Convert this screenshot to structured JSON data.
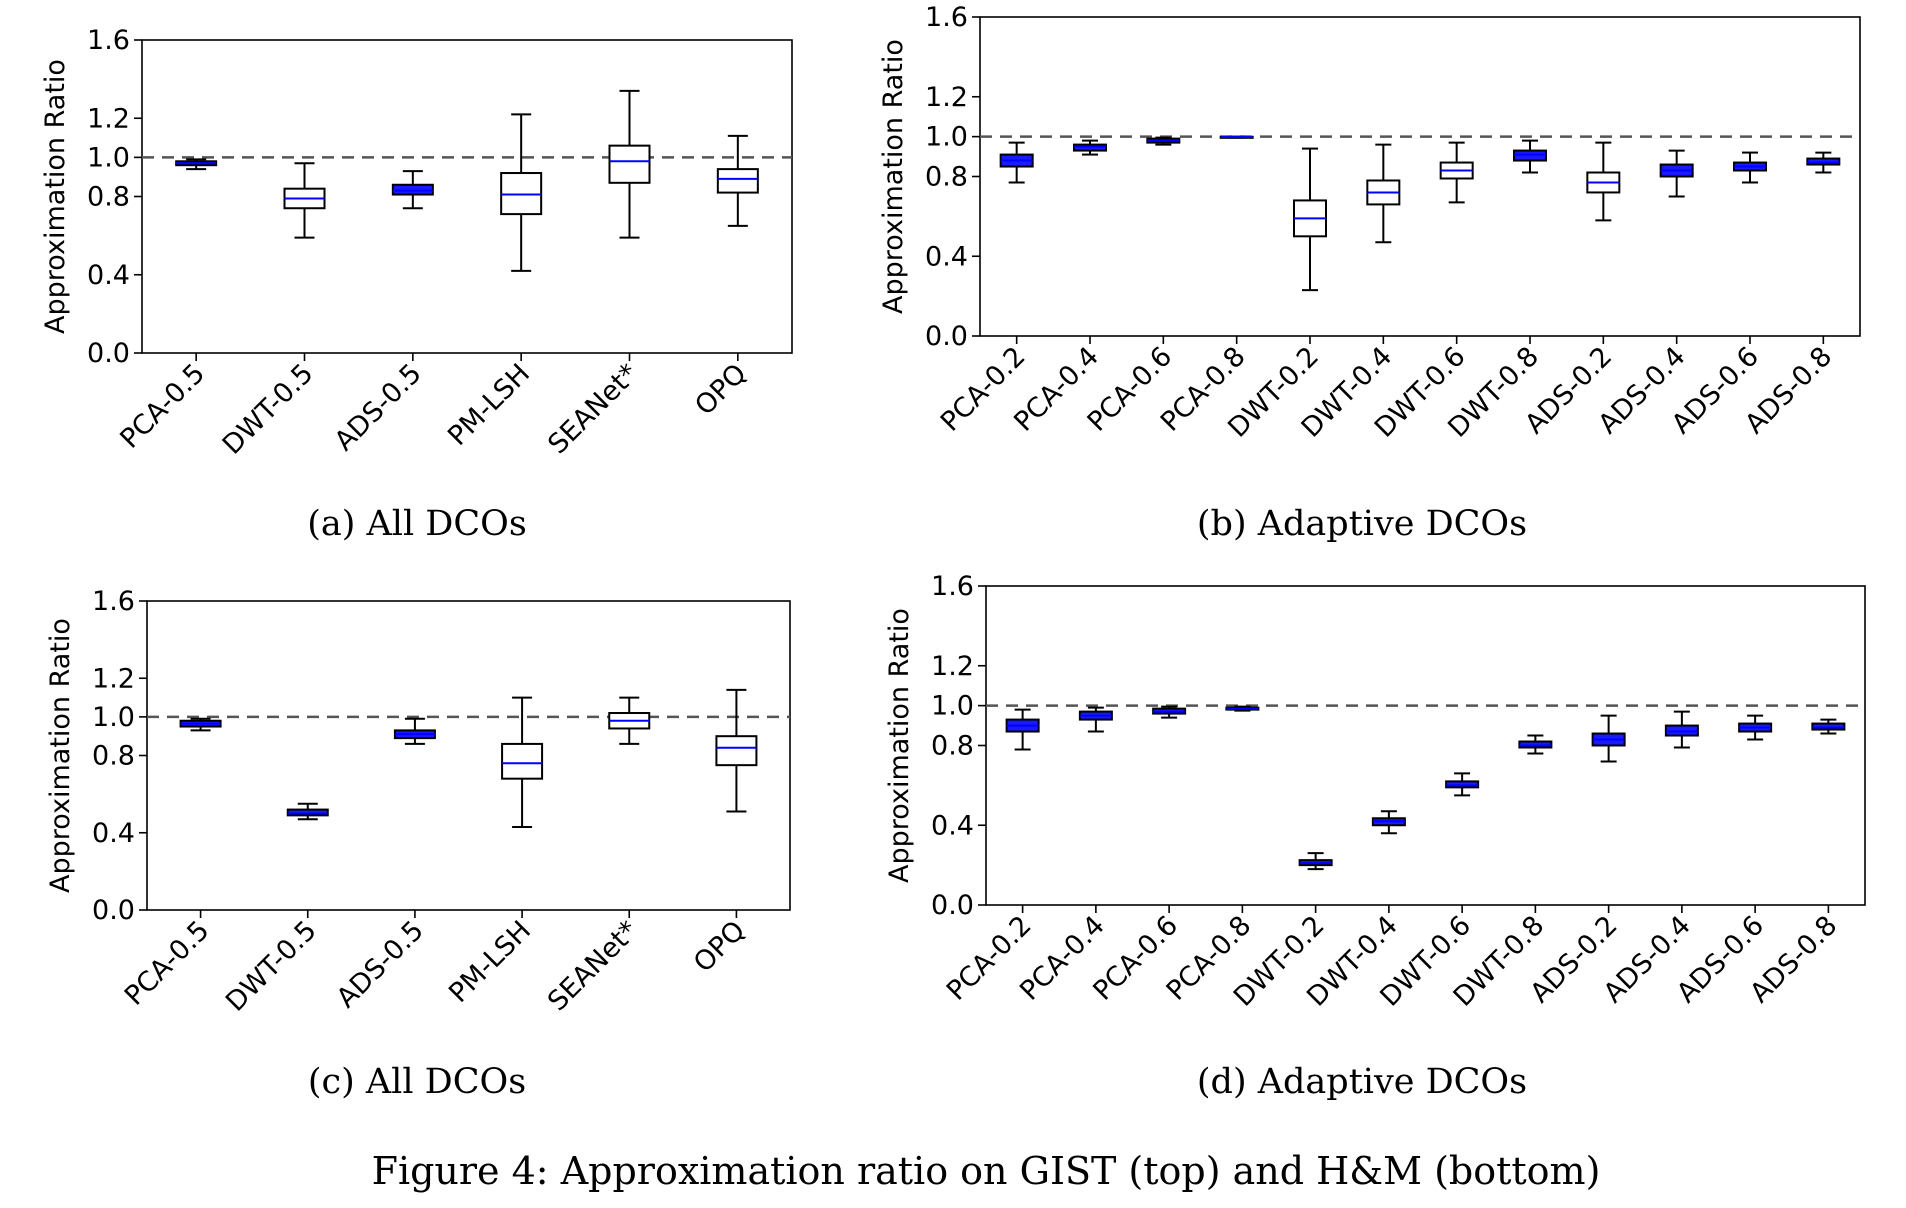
{
  "figure": {
    "caption": "Figure 4: Approximation ratio on GIST (top) and H&M (bottom)"
  },
  "chart_data": [
    {
      "id": "a",
      "type": "boxplot",
      "subcaption": "(a) All DCOs",
      "ylabel": "Approximation Ratio",
      "ylim": [
        0.0,
        1.6
      ],
      "yticks": [
        "0.0",
        "0.4",
        "0.8",
        "1.0",
        "1.2",
        "1.6"
      ],
      "reference_line": 1.0,
      "categories": [
        "PCA-0.5",
        "DWT-0.5",
        "ADS-0.5",
        "PM-LSH",
        "SEANet*",
        "OPQ"
      ],
      "boxes": [
        {
          "whislo": 0.94,
          "q1": 0.96,
          "med": 0.97,
          "q3": 0.98,
          "whishi": 0.99
        },
        {
          "whislo": 0.59,
          "q1": 0.74,
          "med": 0.79,
          "q3": 0.84,
          "whishi": 0.97
        },
        {
          "whislo": 0.74,
          "q1": 0.81,
          "med": 0.83,
          "q3": 0.86,
          "whishi": 0.93
        },
        {
          "whislo": 0.42,
          "q1": 0.71,
          "med": 0.81,
          "q3": 0.92,
          "whishi": 1.22
        },
        {
          "whislo": 0.59,
          "q1": 0.87,
          "med": 0.98,
          "q3": 1.06,
          "whishi": 1.34
        },
        {
          "whislo": 0.65,
          "q1": 0.82,
          "med": 0.89,
          "q3": 0.94,
          "whishi": 1.11
        }
      ]
    },
    {
      "id": "b",
      "type": "boxplot",
      "subcaption": "(b) Adaptive DCOs",
      "ylabel": "Approximation Ratio",
      "ylim": [
        0.0,
        1.6
      ],
      "yticks": [
        "0.0",
        "0.4",
        "0.8",
        "1.0",
        "1.2",
        "1.6"
      ],
      "reference_line": 1.0,
      "categories": [
        "PCA-0.2",
        "PCA-0.4",
        "PCA-0.6",
        "PCA-0.8",
        "DWT-0.2",
        "DWT-0.4",
        "DWT-0.6",
        "DWT-0.8",
        "ADS-0.2",
        "ADS-0.4",
        "ADS-0.6",
        "ADS-0.8"
      ],
      "boxes": [
        {
          "whislo": 0.77,
          "q1": 0.85,
          "med": 0.88,
          "q3": 0.91,
          "whishi": 0.97
        },
        {
          "whislo": 0.91,
          "q1": 0.93,
          "med": 0.95,
          "q3": 0.96,
          "whishi": 0.98
        },
        {
          "whislo": 0.96,
          "q1": 0.97,
          "med": 0.98,
          "q3": 0.99,
          "whishi": 0.995
        },
        {
          "whislo": 0.995,
          "q1": 0.997,
          "med": 0.998,
          "q3": 0.999,
          "whishi": 1.0
        },
        {
          "whislo": 0.23,
          "q1": 0.5,
          "med": 0.59,
          "q3": 0.68,
          "whishi": 0.94
        },
        {
          "whislo": 0.47,
          "q1": 0.66,
          "med": 0.72,
          "q3": 0.78,
          "whishi": 0.96
        },
        {
          "whislo": 0.67,
          "q1": 0.79,
          "med": 0.83,
          "q3": 0.87,
          "whishi": 0.97
        },
        {
          "whislo": 0.82,
          "q1": 0.88,
          "med": 0.91,
          "q3": 0.93,
          "whishi": 0.98
        },
        {
          "whislo": 0.58,
          "q1": 0.72,
          "med": 0.77,
          "q3": 0.82,
          "whishi": 0.97
        },
        {
          "whislo": 0.7,
          "q1": 0.8,
          "med": 0.83,
          "q3": 0.86,
          "whishi": 0.93
        },
        {
          "whislo": 0.77,
          "q1": 0.83,
          "med": 0.85,
          "q3": 0.87,
          "whishi": 0.92
        },
        {
          "whislo": 0.82,
          "q1": 0.86,
          "med": 0.87,
          "q3": 0.89,
          "whishi": 0.92
        }
      ]
    },
    {
      "id": "c",
      "type": "boxplot",
      "subcaption": "(c) All DCOs",
      "ylabel": "Approximation Ratio",
      "ylim": [
        0.0,
        1.6
      ],
      "yticks": [
        "0.0",
        "0.4",
        "0.8",
        "1.0",
        "1.2",
        "1.6"
      ],
      "reference_line": 1.0,
      "categories": [
        "PCA-0.5",
        "DWT-0.5",
        "ADS-0.5",
        "PM-LSH",
        "SEANet*",
        "OPQ"
      ],
      "boxes": [
        {
          "whislo": 0.93,
          "q1": 0.95,
          "med": 0.965,
          "q3": 0.98,
          "whishi": 0.99
        },
        {
          "whislo": 0.47,
          "q1": 0.49,
          "med": 0.5,
          "q3": 0.52,
          "whishi": 0.55
        },
        {
          "whislo": 0.86,
          "q1": 0.89,
          "med": 0.91,
          "q3": 0.93,
          "whishi": 0.99
        },
        {
          "whislo": 0.43,
          "q1": 0.68,
          "med": 0.76,
          "q3": 0.86,
          "whishi": 1.1
        },
        {
          "whislo": 0.86,
          "q1": 0.94,
          "med": 0.98,
          "q3": 1.02,
          "whishi": 1.1
        },
        {
          "whislo": 0.51,
          "q1": 0.75,
          "med": 0.84,
          "q3": 0.9,
          "whishi": 1.14
        }
      ]
    },
    {
      "id": "d",
      "type": "boxplot",
      "subcaption": "(d) Adaptive DCOs",
      "ylabel": "Approximation Ratio",
      "ylim": [
        0.0,
        1.6
      ],
      "yticks": [
        "0.0",
        "0.4",
        "0.8",
        "1.0",
        "1.2",
        "1.6"
      ],
      "reference_line": 1.0,
      "categories": [
        "PCA-0.2",
        "PCA-0.4",
        "PCA-0.6",
        "PCA-0.8",
        "DWT-0.2",
        "DWT-0.4",
        "DWT-0.6",
        "DWT-0.8",
        "ADS-0.2",
        "ADS-0.4",
        "ADS-0.6",
        "ADS-0.8"
      ],
      "boxes": [
        {
          "whislo": 0.78,
          "q1": 0.87,
          "med": 0.9,
          "q3": 0.93,
          "whishi": 0.98
        },
        {
          "whislo": 0.87,
          "q1": 0.93,
          "med": 0.95,
          "q3": 0.97,
          "whishi": 0.99
        },
        {
          "whislo": 0.94,
          "q1": 0.96,
          "med": 0.97,
          "q3": 0.985,
          "whishi": 0.995
        },
        {
          "whislo": 0.975,
          "q1": 0.98,
          "med": 0.985,
          "q3": 0.99,
          "whishi": 0.995
        },
        {
          "whislo": 0.18,
          "q1": 0.2,
          "med": 0.21,
          "q3": 0.225,
          "whishi": 0.26
        },
        {
          "whislo": 0.36,
          "q1": 0.4,
          "med": 0.42,
          "q3": 0.435,
          "whishi": 0.47
        },
        {
          "whislo": 0.55,
          "q1": 0.59,
          "med": 0.6,
          "q3": 0.62,
          "whishi": 0.66
        },
        {
          "whislo": 0.76,
          "q1": 0.79,
          "med": 0.8,
          "q3": 0.82,
          "whishi": 0.85
        },
        {
          "whislo": 0.72,
          "q1": 0.8,
          "med": 0.83,
          "q3": 0.86,
          "whishi": 0.95
        },
        {
          "whislo": 0.79,
          "q1": 0.85,
          "med": 0.87,
          "q3": 0.9,
          "whishi": 0.97
        },
        {
          "whislo": 0.83,
          "q1": 0.87,
          "med": 0.89,
          "q3": 0.91,
          "whishi": 0.95
        },
        {
          "whislo": 0.86,
          "q1": 0.88,
          "med": 0.89,
          "q3": 0.91,
          "whishi": 0.93
        }
      ]
    }
  ],
  "colors": {
    "box_edge": "#000000",
    "median": "#0000ff",
    "tight_box_fill": "#1a1aff",
    "reference_line": "#555555",
    "axis": "#000000"
  }
}
